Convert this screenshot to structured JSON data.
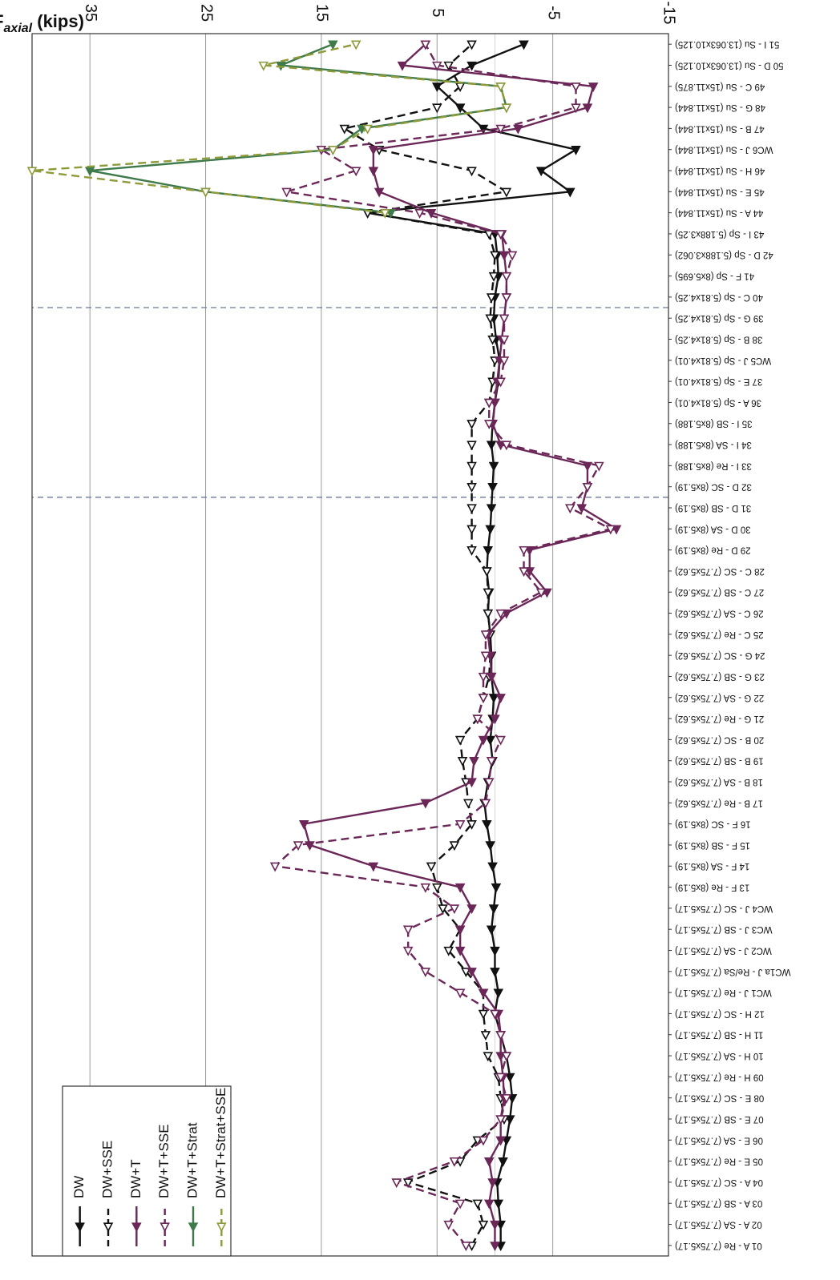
{
  "chart_data": {
    "type": "line",
    "orientation": "rotated-180",
    "ylabel_main": "F",
    "ylabel_sub": "axial",
    "ylabel_unit": " (kips)",
    "ylim": [
      -15,
      40
    ],
    "yticks": [
      35,
      25,
      15,
      5,
      -5,
      -15
    ],
    "grid": true,
    "legend_position": "inside, near the end of the members list",
    "section_dividers_after": [
      35,
      44
    ],
    "categories": [
      "01 A - Re (7.75x5.17)",
      "02 A - SA (7.75x5.17)",
      "03 A - SB (7.75x5.17)",
      "04 A - SC (7.75x5.17)",
      "05 E - Re (7.75x5.17)",
      "06 E - SA (7.75x5.17)",
      "07 E - SB (7.75x5.17)",
      "08 E - SC (7.75x5.17)",
      "09 H - Re (7.75x5.17)",
      "10 H - SA (7.75x5.17)",
      "11 H - SB (7.75x5.17)",
      "12 H - SC (7.75x5.17)",
      "WC1 J - Re (7.75x5.17)",
      "WC1a J - Re/Sa (7.75x5.17)",
      "WC2 J - SA (7.75x5.17)",
      "WC3 J - SB (7.75x5.17)",
      "WC4 J - SC (7.75x5.17)",
      "13 F - Re (8x5.19)",
      "14 F - SA (8x5.19)",
      "15 F - SB (8x5.19)",
      "16 F - SC (8x5.19)",
      "17 B - Re (7.75x5.62)",
      "18 B - SA (7.75x5.62)",
      "19 B - SB (7.75x5.62)",
      "20 B - SC (7.75x5.62)",
      "21 G - Re (7.75x5.62)",
      "22 G - SA (7.75x5.62)",
      "23 G - SB (7.75x5.62)",
      "24 G - SC (7.75x5.62)",
      "25 C - Re (7.75x5.62)",
      "26 C - SA (7.75x5.62)",
      "27 C - SB (7.75x5.62)",
      "28 C - SC (7.75x5.62)",
      "29 D - Re (8x5.19)",
      "30 D - SA (8x5.19)",
      "31 D - SB (8x5.19)",
      "32 D - SC (8x5.19)",
      "33 I - Re (8x5.188)",
      "34 I - SA (8x5.188)",
      "35 I - SB (8x5.188)",
      "36 A - Sp (5.81x4.01)",
      "37 E - Sp (5.81x4.01)",
      "WC5 J - Sp (5.81x4.01)",
      "38 B - Sp (5.81x4.25)",
      "39 G - Sp (5.81x4.25)",
      "40 C - Sp (5.81x4.25)",
      "41 F - Sp (8x5.695)",
      "42 D - Sp (5.188x3.062)",
      "43 I - Sp (5.188x3.25)",
      "44 A - Su (15x11.844)",
      "45 E - Su (15x11.844)",
      "46 H - Su (15x11.844)",
      "WC6 J - Su (15x11.844)",
      "47 B - Su (15x11.844)",
      "48 G - Su (15x11.844)",
      "49 C - Su (15x11.875)",
      "50 D - Su (13.063x10.125)",
      "51 I - Su (13.063x10.125)"
    ],
    "series": [
      {
        "name": "DW",
        "color": "#111111",
        "dashed": false,
        "marker": "triangle-filled",
        "values": [
          -0.5,
          -0.5,
          -0.3,
          -0.2,
          -0.7,
          -1.0,
          -1.3,
          -1.5,
          -1.3,
          -1.0,
          -0.5,
          0.0,
          -0.3,
          0.0,
          0.0,
          0.3,
          0.1,
          -0.1,
          0.2,
          0.4,
          0.7,
          0.9,
          0.6,
          0.2,
          0.4,
          0.2,
          0.1,
          0.3,
          0.3,
          0.4,
          0.6,
          0.5,
          0.7,
          0.6,
          0.4,
          0.3,
          0.2,
          0.1,
          0.3,
          0.2,
          0.0,
          -0.3,
          -0.4,
          -0.1,
          0.1,
          0.0,
          -0.3,
          -0.2,
          0.0,
          11.0,
          -6.5,
          -4.0,
          -7.0,
          1.0,
          3.0,
          5.0,
          2.0,
          -2.5
        ]
      },
      {
        "name": "DW+SSE",
        "color": "#111111",
        "dashed": true,
        "marker": "triangle-open",
        "values": [
          2.0,
          1.0,
          1.5,
          7.5,
          3.0,
          1.5,
          -0.8,
          -0.5,
          -0.3,
          0.6,
          0.8,
          1.0,
          1.0,
          2.5,
          4.0,
          3.0,
          4.5,
          5.0,
          5.5,
          3.5,
          2.0,
          2.3,
          2.5,
          2.8,
          3.0,
          1.5,
          1.0,
          0.5,
          0.4,
          0.4,
          0.6,
          0.6,
          0.7,
          2.0,
          2.0,
          2.0,
          2.0,
          2.0,
          2.0,
          2.0,
          0.5,
          0.2,
          0.0,
          0.2,
          0.4,
          0.3,
          0.1,
          0.0,
          0.5,
          11.0,
          -1.0,
          2.0,
          10.0,
          13.0,
          5.0,
          3.0,
          4.0,
          2.0
        ]
      },
      {
        "name": "DW+T",
        "color": "#6b2758",
        "dashed": false,
        "marker": "triangle-filled",
        "values": [
          0.0,
          0.0,
          0.5,
          0.2,
          0.5,
          -0.5,
          -0.5,
          -0.8,
          -0.7,
          -0.5,
          -0.5,
          -0.3,
          1.0,
          2.0,
          3.0,
          3.0,
          2.0,
          3.0,
          10.5,
          16.0,
          16.5,
          6.0,
          2.0,
          1.8,
          1.0,
          0.0,
          -0.5,
          0.3,
          0.4,
          0.6,
          -1.0,
          -4.5,
          -3.0,
          -3.0,
          -10.5,
          -7.5,
          -8.0,
          -8.0,
          -0.5,
          0.2,
          0.0,
          -0.2,
          -0.4,
          -0.6,
          -0.8,
          -1.0,
          -1.0,
          -0.8,
          -0.6,
          5.5,
          10.0,
          10.5,
          10.5,
          -2.0,
          -8.0,
          -8.5,
          8.0,
          6.0
        ]
      },
      {
        "name": "DW+T+SSE",
        "color": "#6b2758",
        "dashed": true,
        "marker": "triangle-open",
        "values": [
          2.5,
          4.0,
          3.0,
          8.5,
          3.5,
          1.0,
          -0.5,
          -1.0,
          -0.5,
          -1.0,
          -0.5,
          0.0,
          3.0,
          6.0,
          7.5,
          7.5,
          3.5,
          6.0,
          19.0,
          17.0,
          3.0,
          0.8,
          0.5,
          0.3,
          -0.5,
          1.5,
          1.0,
          1.0,
          0.8,
          0.8,
          -0.5,
          -4.0,
          -2.5,
          -2.5,
          -10.0,
          -6.5,
          -8.0,
          -9.0,
          -1.0,
          0.5,
          0.5,
          -0.5,
          -0.8,
          -0.8,
          -0.8,
          -1.0,
          -1.0,
          -1.5,
          -0.5,
          6.5,
          18.0,
          12.0,
          15.0,
          -0.5,
          -7.0,
          -7.0,
          5.0,
          6.0
        ]
      },
      {
        "name": "DW+T+Strat",
        "color": "#3e7a4a",
        "dashed": false,
        "marker": "triangle-filled",
        "values": [
          null,
          null,
          null,
          null,
          null,
          null,
          null,
          null,
          null,
          null,
          null,
          null,
          null,
          null,
          null,
          null,
          null,
          null,
          null,
          null,
          null,
          null,
          null,
          null,
          null,
          null,
          null,
          null,
          null,
          null,
          null,
          null,
          null,
          null,
          null,
          null,
          null,
          null,
          null,
          null,
          null,
          null,
          null,
          null,
          null,
          null,
          null,
          null,
          null,
          9.0,
          25.0,
          35.0,
          14.0,
          11.5,
          -1.0,
          -0.5,
          18.5,
          14.0
        ]
      },
      {
        "name": "DW+T+Strat+SSE",
        "color": "#8f9a3a",
        "dashed": true,
        "marker": "triangle-open",
        "values": [
          null,
          null,
          null,
          null,
          null,
          null,
          null,
          null,
          null,
          null,
          null,
          null,
          null,
          null,
          null,
          null,
          null,
          null,
          null,
          null,
          null,
          null,
          null,
          null,
          null,
          null,
          null,
          null,
          null,
          null,
          null,
          null,
          null,
          null,
          null,
          null,
          null,
          null,
          null,
          null,
          null,
          null,
          null,
          null,
          null,
          null,
          null,
          null,
          null,
          9.5,
          25.0,
          40.0,
          14.0,
          11.0,
          -1.0,
          -0.5,
          20.0,
          12.0
        ]
      }
    ]
  }
}
